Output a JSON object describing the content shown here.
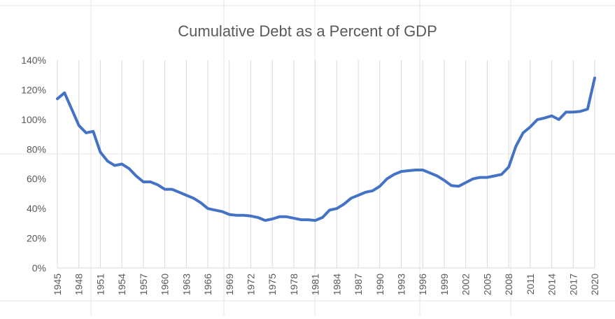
{
  "chart_data": {
    "type": "line",
    "title": "Cumulative Debt as a Percent of GDP",
    "xlabel": "",
    "ylabel": "",
    "ylim": [
      0,
      140
    ],
    "yticks": [
      0,
      20,
      40,
      60,
      80,
      100,
      120,
      140
    ],
    "ytick_labels": [
      "0%",
      "20%",
      "40%",
      "60%",
      "80%",
      "100%",
      "120%",
      "140%"
    ],
    "xlim": [
      1945,
      2020
    ],
    "xticks": [
      1945,
      1948,
      1951,
      1954,
      1957,
      1960,
      1963,
      1966,
      1969,
      1972,
      1975,
      1978,
      1981,
      1984,
      1987,
      1990,
      1993,
      1996,
      1999,
      2002,
      2005,
      2008,
      2011,
      2014,
      2017,
      2020
    ],
    "grid": "vertical",
    "legend": "none",
    "series": [
      {
        "color": "#4472C4",
        "x": [
          1945,
          1946,
          1947,
          1948,
          1949,
          1950,
          1951,
          1952,
          1953,
          1954,
          1955,
          1956,
          1957,
          1958,
          1959,
          1960,
          1961,
          1962,
          1963,
          1964,
          1965,
          1966,
          1967,
          1968,
          1969,
          1970,
          1971,
          1972,
          1973,
          1974,
          1975,
          1976,
          1977,
          1978,
          1979,
          1980,
          1981,
          1982,
          1983,
          1984,
          1985,
          1986,
          1987,
          1988,
          1989,
          1990,
          1991,
          1992,
          1993,
          1994,
          1995,
          1996,
          1997,
          1998,
          1999,
          2000,
          2001,
          2002,
          2003,
          2004,
          2005,
          2006,
          2007,
          2008,
          2009,
          2010,
          2011,
          2012,
          2013,
          2014,
          2015,
          2016,
          2017,
          2018,
          2019,
          2020
        ],
        "values": [
          114,
          118,
          107,
          96,
          91,
          92,
          78,
          72,
          69,
          70,
          67,
          62,
          58,
          58,
          56,
          53,
          53,
          51,
          49,
          47,
          44,
          40,
          39,
          38,
          36,
          35.5,
          35.5,
          35,
          34,
          32,
          33,
          34.5,
          34.5,
          33.5,
          32.5,
          32.5,
          32,
          34,
          39,
          40,
          43,
          47,
          49,
          51,
          52,
          55,
          60,
          63,
          65,
          65.5,
          66,
          66,
          64,
          62,
          59,
          55.5,
          55,
          57.5,
          60,
          61,
          61,
          62,
          63,
          68,
          82,
          91,
          95,
          100,
          101,
          102.5,
          100,
          105,
          105,
          105.5,
          107,
          128
        ]
      }
    ]
  }
}
